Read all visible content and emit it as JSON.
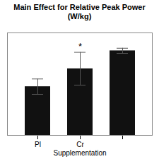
{
  "chart_data": {
    "type": "bar",
    "title": "Main Effect for Relative Peak Power (W/kg)",
    "categories": [
      "Pl",
      "Cr",
      null
    ],
    "values": [
      9.5,
      13.0,
      16.5
    ],
    "errors": [
      1.5,
      3.2,
      0.5
    ],
    "color": "#111111",
    "xlabel": "Supplementation",
    "ylim": [
      0,
      20
    ],
    "tick_labels": "x",
    "annotations": [
      {
        "text": "*",
        "index": 1
      }
    ]
  }
}
